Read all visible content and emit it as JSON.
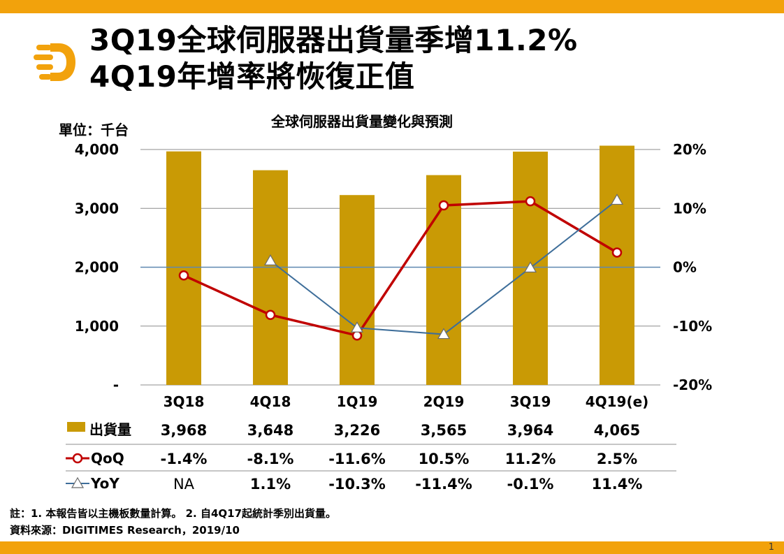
{
  "title": {
    "line1": "3Q19全球伺服器出貨量季增11.2%",
    "line2": "4Q19年增率將恢復正值"
  },
  "unit_label": "單位：千台",
  "chart_data": {
    "type": "bar+line",
    "title": "全球伺服器出貨量變化與預測",
    "categories": [
      "3Q18",
      "4Q18",
      "1Q19",
      "2Q19",
      "3Q19",
      "4Q19(e)"
    ],
    "left_axis": {
      "ylim": [
        0,
        4000
      ],
      "ticks": [
        "-",
        "1,000",
        "2,000",
        "3,000",
        "4,000"
      ],
      "tick_values": [
        0,
        1000,
        2000,
        3000,
        4000
      ]
    },
    "right_axis": {
      "ylim": [
        -20,
        20
      ],
      "ticks": [
        "-20%",
        "-10%",
        "0%",
        "10%",
        "20%"
      ],
      "tick_values": [
        -20,
        -10,
        0,
        10,
        20
      ]
    },
    "series": [
      {
        "name": "出貨量",
        "kind": "bar",
        "axis": "left",
        "color": "#c99a05",
        "values": [
          3968,
          3648,
          3226,
          3565,
          3964,
          4065
        ],
        "labels": [
          "3,968",
          "3,648",
          "3,226",
          "3,565",
          "3,964",
          "4,065"
        ]
      },
      {
        "name": "QoQ",
        "kind": "line",
        "axis": "right",
        "color": "#c00000",
        "marker": "circle",
        "values": [
          -1.4,
          -8.1,
          -11.6,
          10.5,
          11.2,
          2.5
        ],
        "labels": [
          "-1.4%",
          "-8.1%",
          "-11.6%",
          "10.5%",
          "11.2%",
          "2.5%"
        ]
      },
      {
        "name": "YoY",
        "kind": "line",
        "axis": "right",
        "color": "#3e6e9a",
        "marker": "triangle",
        "values": [
          null,
          1.1,
          -10.3,
          -11.4,
          -0.1,
          11.4
        ],
        "labels": [
          "NA",
          "1.1%",
          "-10.3%",
          "-11.4%",
          "-0.1%",
          "11.4%"
        ]
      }
    ]
  },
  "footnotes": {
    "note": "註：1. 本報告皆以主機板數量計算。 2. 自4Q17起統計季別出貨量。",
    "source": "資料來源：DIGITIMES Research，2019/10"
  },
  "page_number": "1",
  "colors": {
    "accent": "#f2a20c",
    "bar": "#c99a05",
    "qoq": "#c00000",
    "yoy": "#3e6e9a"
  }
}
